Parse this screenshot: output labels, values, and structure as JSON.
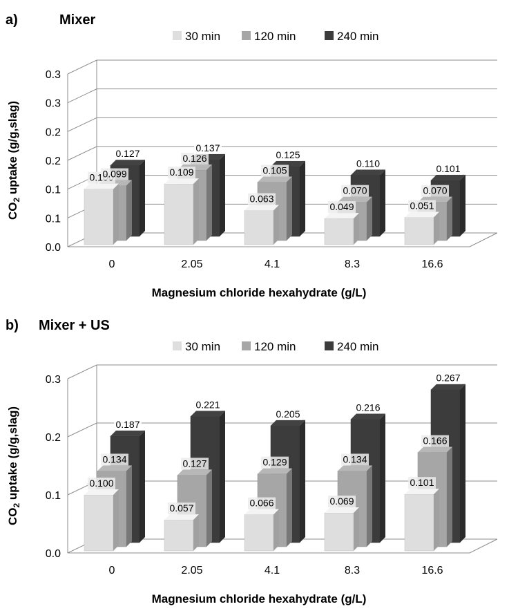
{
  "chart_data": [
    {
      "type": "bar",
      "panel_label": "a)",
      "title": "Mixer",
      "xlabel": "Magnesium chloride hexahydrate (g/L)",
      "ylabel_parts": [
        "CO",
        "2",
        " uptake (g/g,slag)"
      ],
      "categories": [
        "0",
        "2.05",
        "4.1",
        "8.3",
        "16.6"
      ],
      "y_tick_labels": [
        "0.0",
        "0.1",
        "0.1",
        "0.2",
        "0.2",
        "0.3",
        "0.3"
      ],
      "ylim": [
        0,
        0.3
      ],
      "grid": true,
      "legend_position": "top",
      "series": [
        {
          "name": "30 min",
          "color": "#dedede",
          "values": [
            0.1,
            0.109,
            0.063,
            0.049,
            0.051
          ],
          "labels": [
            "0.100",
            "0.109",
            "0.063",
            "0.049",
            "0.051"
          ]
        },
        {
          "name": "120 min",
          "color": "#a6a6a6",
          "values": [
            0.099,
            0.126,
            0.105,
            0.07,
            0.07
          ],
          "labels": [
            "0.099",
            "0.126",
            "0.105",
            "0.070",
            "0.070"
          ]
        },
        {
          "name": "240 min",
          "color": "#3c3c3c",
          "values": [
            0.127,
            0.137,
            0.125,
            0.11,
            0.101
          ],
          "labels": [
            "0.127",
            "0.137",
            "0.125",
            "0.110",
            "0.101"
          ]
        }
      ]
    },
    {
      "type": "bar",
      "panel_label": "b)",
      "title": "Mixer + US",
      "xlabel": "Magnesium chloride hexahydrate (g/L)",
      "ylabel_parts": [
        "CO",
        "2",
        " uptake (g/g,slag)"
      ],
      "categories": [
        "0",
        "2.05",
        "4.1",
        "8.3",
        "16.6"
      ],
      "y_tick_labels": [
        "0.0",
        "0.1",
        "0.2",
        "0.3"
      ],
      "ylim": [
        0,
        0.3
      ],
      "grid": true,
      "legend_position": "top",
      "series": [
        {
          "name": "30 min",
          "color": "#dedede",
          "values": [
            0.1,
            0.057,
            0.066,
            0.069,
            0.101
          ],
          "labels": [
            "0.100",
            "0.057",
            "0.066",
            "0.069",
            "0.101"
          ]
        },
        {
          "name": "120 min",
          "color": "#a6a6a6",
          "values": [
            0.134,
            0.127,
            0.129,
            0.134,
            0.166
          ],
          "labels": [
            "0.134",
            "0.127",
            "0.129",
            "0.134",
            "0.166"
          ]
        },
        {
          "name": "240 min",
          "color": "#3c3c3c",
          "values": [
            0.187,
            0.221,
            0.205,
            0.216,
            0.267
          ],
          "labels": [
            "0.187",
            "0.221",
            "0.205",
            "0.216",
            "0.267"
          ]
        }
      ]
    }
  ]
}
